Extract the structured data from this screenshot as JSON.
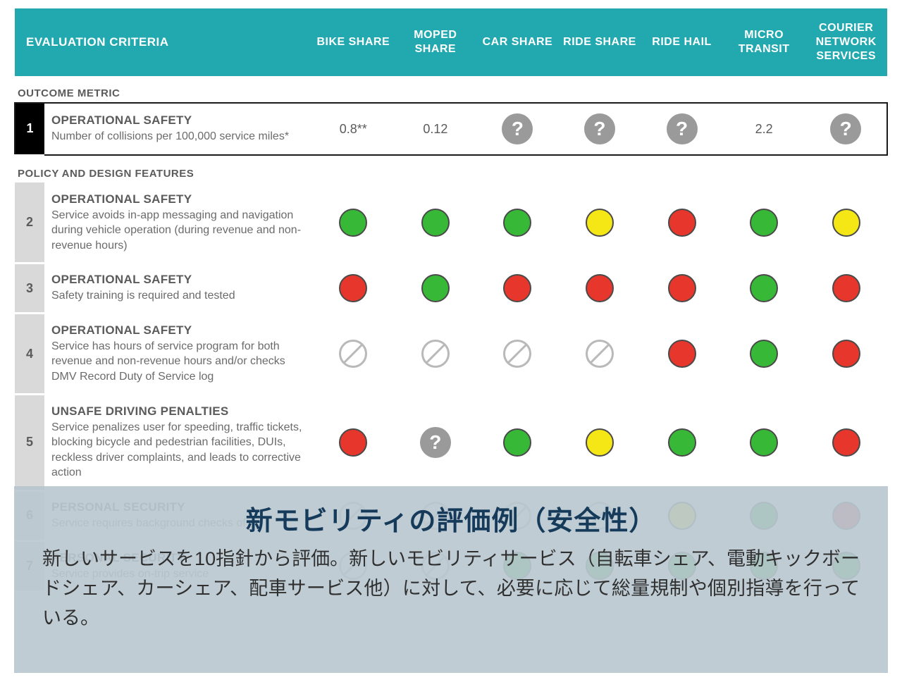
{
  "colors": {
    "header_bg": "#22a9b0",
    "header_text": "#ffffff",
    "num_bg": "#d9d9d9",
    "outcome_num_bg": "#000000",
    "dot_green": "#37b937",
    "dot_yellow": "#f5e615",
    "dot_red": "#e7362c",
    "dot_border": "#4a4a4a",
    "na_border": "#b9b9b9",
    "q_bg": "#9a9a9a",
    "overlay_bg": "rgba(180,195,205,0.85)",
    "overlay_title": "#153a5a"
  },
  "header": {
    "first": "EVALUATION CRITERIA",
    "cols": [
      "BIKE SHARE",
      "MOPED SHARE",
      "CAR SHARE",
      "RIDE SHARE",
      "RIDE HAIL",
      "MICRO TRANSIT",
      "COURIER NETWORK SERVICES"
    ]
  },
  "sections": [
    {
      "label": "OUTCOME METRIC",
      "rows": [
        {
          "n": "1",
          "title": "OPERATIONAL SAFETY",
          "desc": "Number of collisions per 100,000 service miles*",
          "outcome": true,
          "cells": [
            {
              "t": "text",
              "v": "0.8**"
            },
            {
              "t": "text",
              "v": "0.12"
            },
            {
              "t": "q"
            },
            {
              "t": "q"
            },
            {
              "t": "q"
            },
            {
              "t": "text",
              "v": "2.2"
            },
            {
              "t": "q"
            }
          ]
        }
      ]
    },
    {
      "label": "POLICY AND DESIGN FEATURES",
      "rows": [
        {
          "n": "2",
          "title": "OPERATIONAL SAFETY",
          "desc": "Service avoids in-app messaging and navigation during vehicle operation (during revenue and non-revenue hours)",
          "cells": [
            {
              "t": "dot",
              "c": "green"
            },
            {
              "t": "dot",
              "c": "green"
            },
            {
              "t": "dot",
              "c": "green"
            },
            {
              "t": "dot",
              "c": "yellow"
            },
            {
              "t": "dot",
              "c": "red"
            },
            {
              "t": "dot",
              "c": "green"
            },
            {
              "t": "dot",
              "c": "yellow"
            }
          ]
        },
        {
          "n": "3",
          "title": "OPERATIONAL SAFETY",
          "desc": "Safety training is required and tested",
          "cells": [
            {
              "t": "dot",
              "c": "red"
            },
            {
              "t": "dot",
              "c": "green"
            },
            {
              "t": "dot",
              "c": "red"
            },
            {
              "t": "dot",
              "c": "red"
            },
            {
              "t": "dot",
              "c": "red"
            },
            {
              "t": "dot",
              "c": "green"
            },
            {
              "t": "dot",
              "c": "red"
            }
          ]
        },
        {
          "n": "4",
          "title": "OPERATIONAL SAFETY",
          "desc": "Service has hours of service program for both revenue and non-revenue hours and/or checks DMV Record Duty of Service log",
          "cells": [
            {
              "t": "dot",
              "c": "na"
            },
            {
              "t": "dot",
              "c": "na"
            },
            {
              "t": "dot",
              "c": "na"
            },
            {
              "t": "dot",
              "c": "na"
            },
            {
              "t": "dot",
              "c": "red"
            },
            {
              "t": "dot",
              "c": "green"
            },
            {
              "t": "dot",
              "c": "red"
            }
          ]
        },
        {
          "n": "5",
          "title": "UNSAFE DRIVING PENALTIES",
          "desc": "Service penalizes user for speeding, traffic tickets, blocking bicycle and pedestrian facilities, DUIs, reckless driver complaints, and leads to corrective action",
          "cells": [
            {
              "t": "dot",
              "c": "red"
            },
            {
              "t": "q"
            },
            {
              "t": "dot",
              "c": "green"
            },
            {
              "t": "dot",
              "c": "yellow"
            },
            {
              "t": "dot",
              "c": "green"
            },
            {
              "t": "dot",
              "c": "green"
            },
            {
              "t": "dot",
              "c": "red"
            }
          ]
        },
        {
          "n": "6",
          "title": "PERSONAL SECURITY",
          "desc": "Service requires background checks of",
          "faded": true,
          "cells": [
            {
              "t": "dot",
              "c": "na"
            },
            {
              "t": "dot",
              "c": "na"
            },
            {
              "t": "dot",
              "c": "na"
            },
            {
              "t": "dot",
              "c": "na"
            },
            {
              "t": "dot",
              "c": "yellow"
            },
            {
              "t": "dot",
              "c": "green"
            },
            {
              "t": "dot",
              "c": "red"
            }
          ]
        },
        {
          "n": "7",
          "title": "PERSONAL SECURITY",
          "desc": "Service provides on-trip service",
          "faded": true,
          "cells": [
            {
              "t": "dot",
              "c": "na"
            },
            {
              "t": "dot",
              "c": "na"
            },
            {
              "t": "dot",
              "c": "green"
            },
            {
              "t": "dot",
              "c": "green"
            },
            {
              "t": "dot",
              "c": "green"
            },
            {
              "t": "dot",
              "c": "green"
            },
            {
              "t": "dot",
              "c": "green"
            }
          ]
        }
      ]
    }
  ],
  "overlay": {
    "title": "新モビリティの評価例（安全性）",
    "body": "新しいサービスを10指針から評価。新しいモビリティサービス（自転車シェア、電動キックボードシェア、カーシェア、配車サービス他）に対して、必要に応じて総量規制や個別指導を行っている。"
  }
}
